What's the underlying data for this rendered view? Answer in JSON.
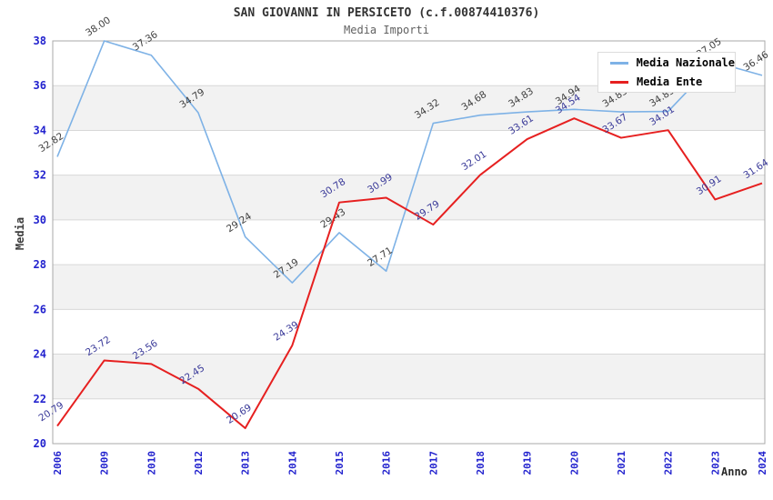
{
  "chart_data": {
    "type": "line",
    "title": "SAN GIOVANNI IN PERSICETO (c.f.00874410376)",
    "subtitle": "Media Importi",
    "xlabel": "Anno",
    "ylabel": "Media",
    "categories": [
      "2006",
      "2009",
      "2010",
      "2012",
      "2013",
      "2014",
      "2015",
      "2016",
      "2017",
      "2018",
      "2019",
      "2020",
      "2021",
      "2022",
      "2023",
      "2024"
    ],
    "series": [
      {
        "name": "Media Nazionale",
        "color": "#7EB2E6",
        "label_color": "#404040",
        "values": [
          32.82,
          38.0,
          37.36,
          34.79,
          29.24,
          27.19,
          29.43,
          27.71,
          34.32,
          34.68,
          34.83,
          34.94,
          34.83,
          34.85,
          37.05,
          36.46
        ]
      },
      {
        "name": "Media Ente",
        "color": "#E62020",
        "label_color": "#3A3A99",
        "values": [
          20.79,
          23.72,
          23.56,
          22.45,
          20.69,
          24.39,
          30.78,
          30.99,
          29.79,
          32.01,
          33.61,
          34.54,
          33.67,
          34.01,
          30.91,
          31.64
        ]
      }
    ],
    "ylim": [
      20,
      38
    ],
    "ytick_step": 2,
    "grid": "horizontal-bands",
    "legend_position": "top-right",
    "colors": {
      "tick_label": "#2222CE",
      "band_gray": "#F2F2F2",
      "grid_line": "#D8D8D8",
      "plot_border": "#A8A8A8"
    }
  }
}
